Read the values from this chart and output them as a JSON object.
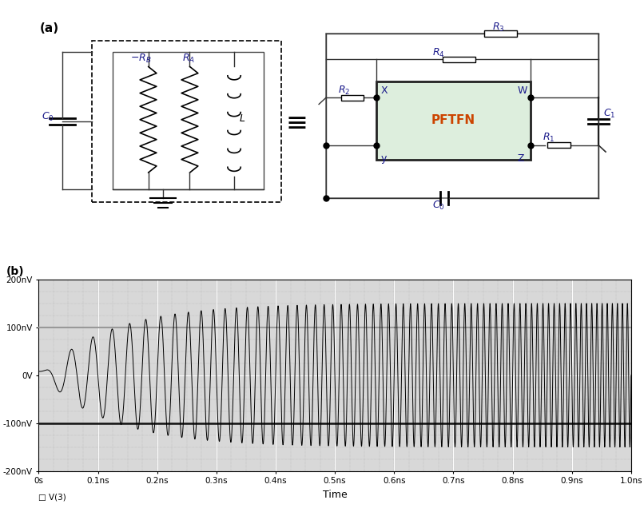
{
  "title_a": "(a)",
  "title_b": "(b)",
  "bg_color": "#ffffff",
  "plot_bg_color": "#d8d8d8",
  "grid_major_color": "#ffffff",
  "grid_minor_dotted_color": "#aaaaaa",
  "waveform_color": "#000000",
  "highlight_line_top_color": "#888888",
  "highlight_line_bot_color": "#111111",
  "xlabel": "Time",
  "yticks": [
    -200,
    -100,
    0,
    100,
    200
  ],
  "ytick_labels": [
    "-200nV",
    "-100nV",
    "0V",
    "100nV",
    "200nV"
  ],
  "xticks": [
    0.0,
    0.1,
    0.2,
    0.3,
    0.4,
    0.5,
    0.6,
    0.7,
    0.8,
    0.9,
    1.0
  ],
  "xtick_labels": [
    "0s",
    "0.1ns",
    "0.2ns",
    "0.3ns",
    "0.4ns",
    "0.5ns",
    "0.6ns",
    "0.7ns",
    "0.8ns",
    "0.9ns",
    "1.0ns"
  ],
  "legend_label": "V(3)",
  "pftfn_text": "PFTFN",
  "pftfn_color": "#cc4400",
  "pftfn_box_edge": "#555555",
  "pftfn_box_face": "#ddeedd",
  "component_color": "#000000",
  "resistor_color": "#555555",
  "wire_color": "#333333",
  "rb_color": "#0000bb",
  "ra_color": "#0000bb",
  "l_color": "#000000"
}
